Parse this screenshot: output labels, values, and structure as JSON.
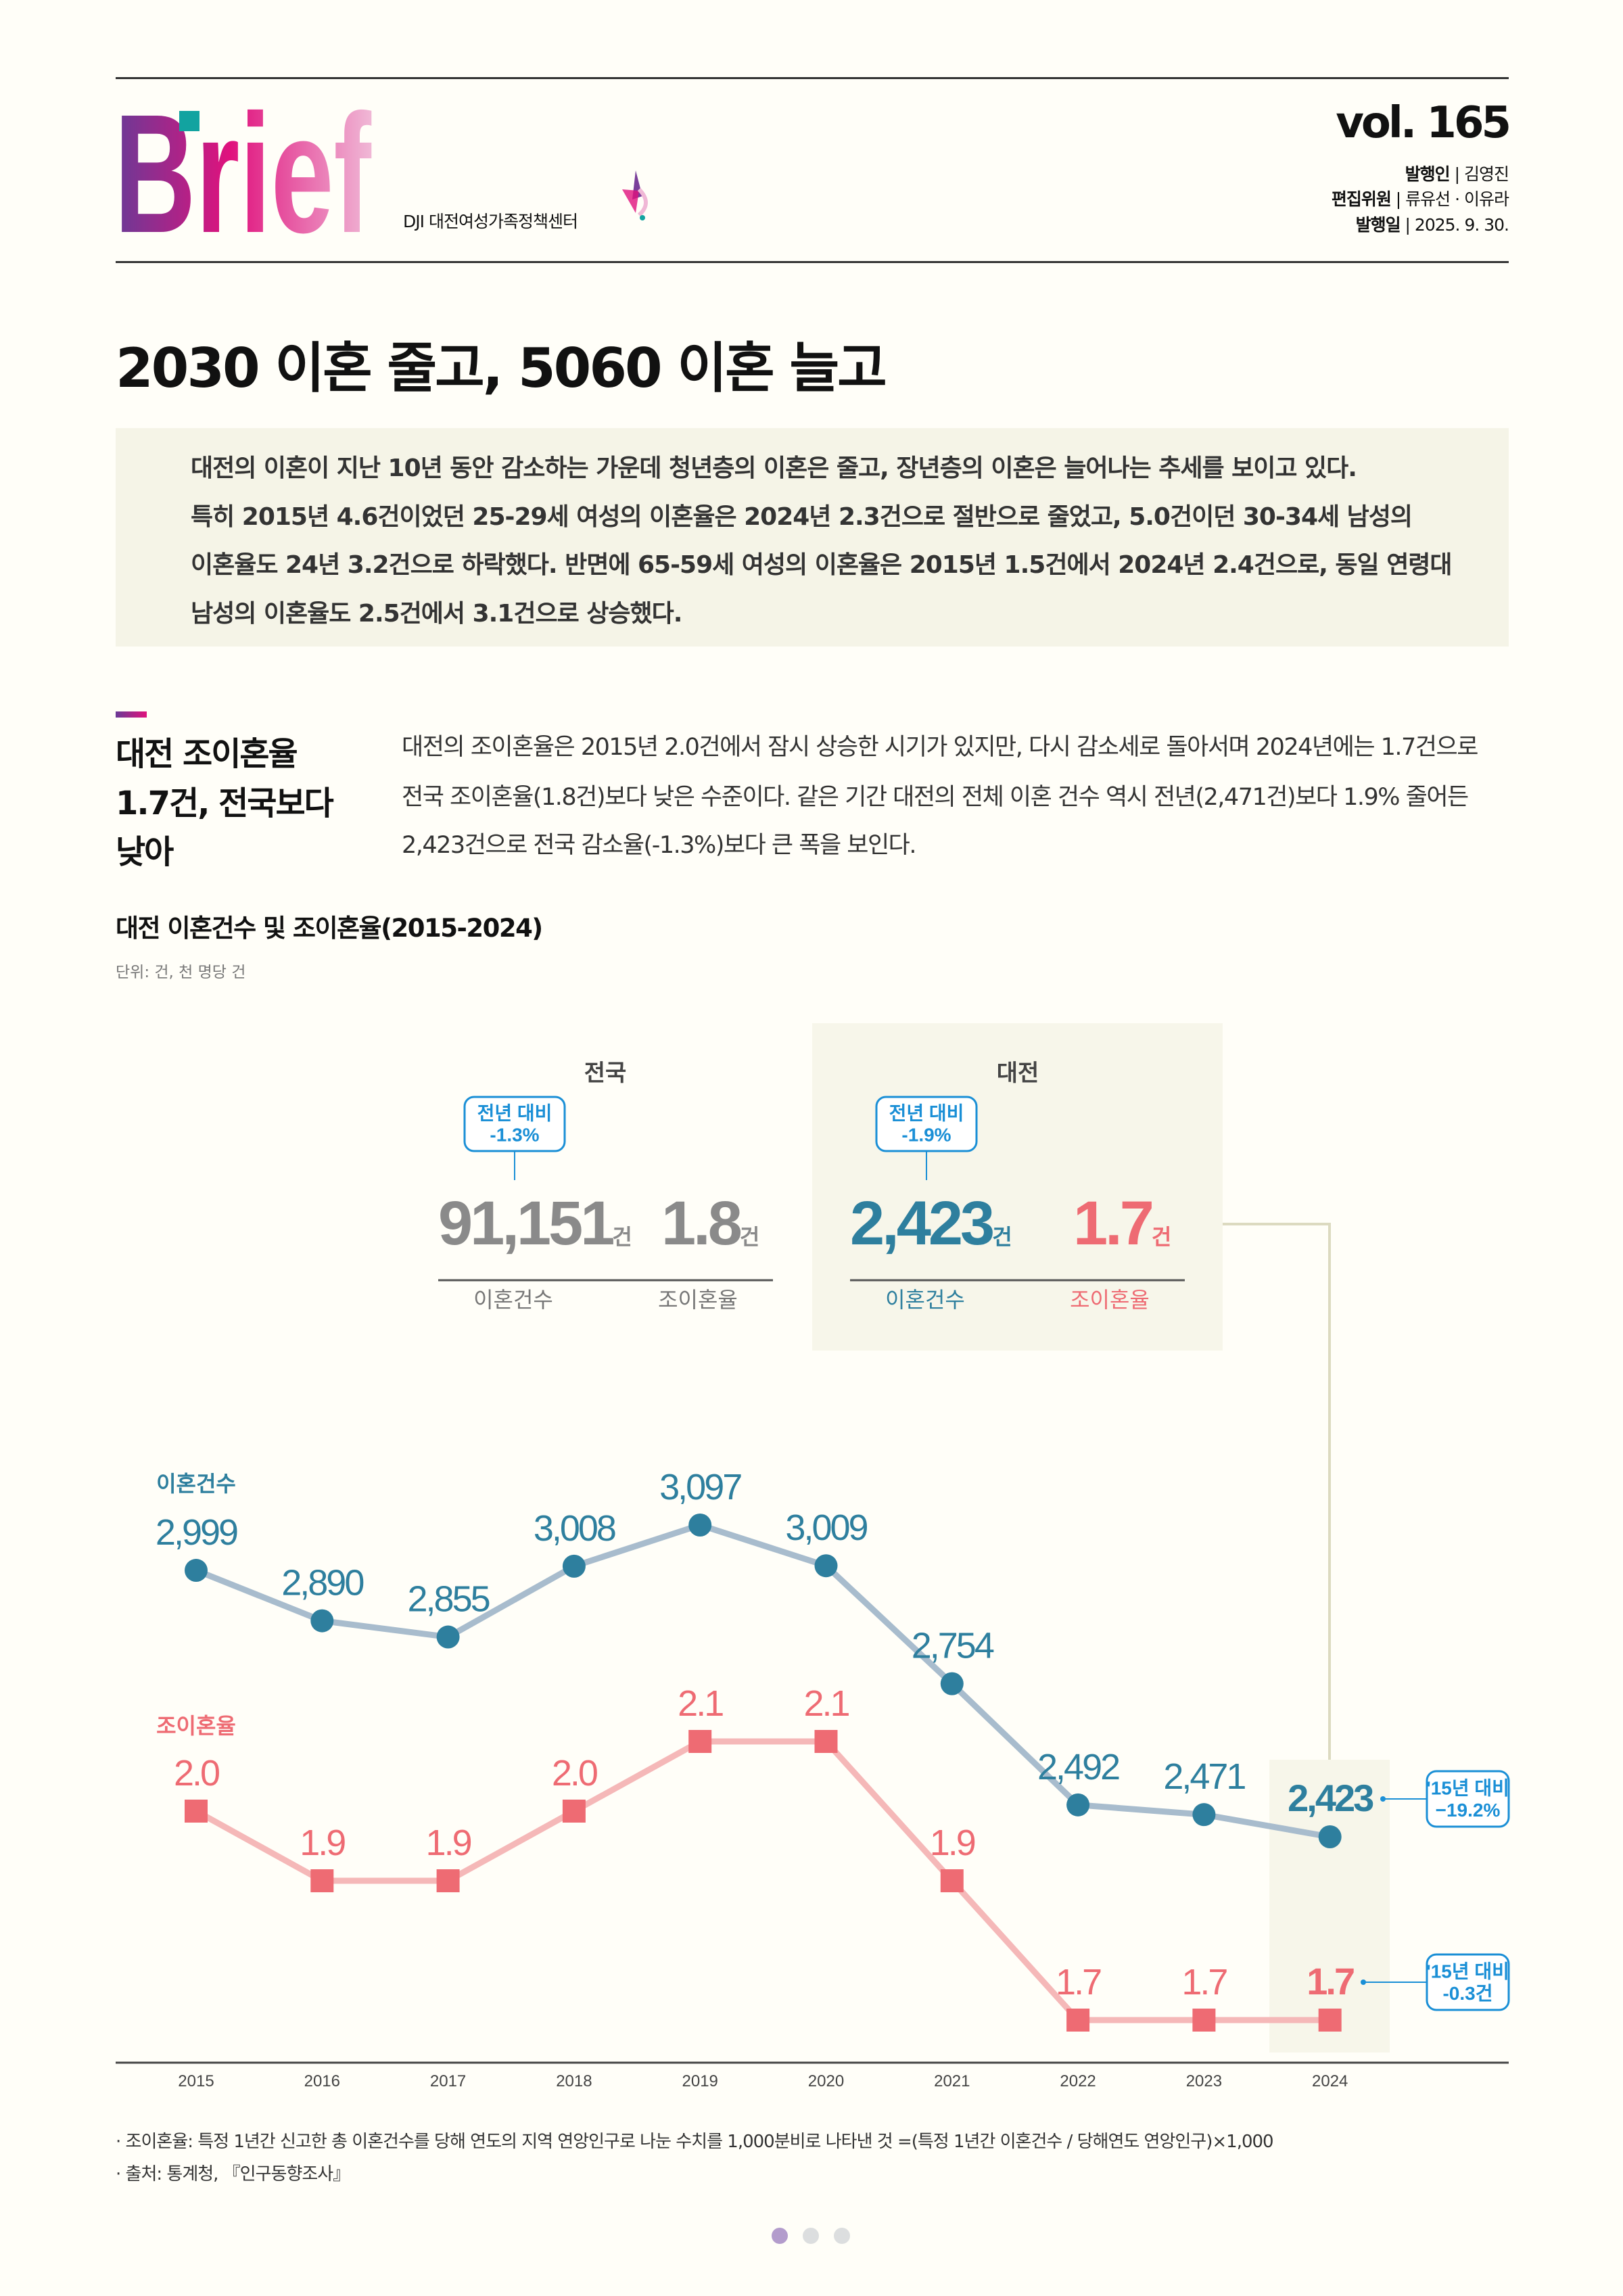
{
  "header": {
    "logo": "Brief",
    "org": "DJI 대전여성가족정책센터",
    "volume": "vol. 165",
    "meta": [
      {
        "label": "발행인",
        "value": "김영진"
      },
      {
        "label": "편집위원",
        "value": "류유선 · 이유라"
      },
      {
        "label": "발행일",
        "value": "2025. 9. 30."
      }
    ]
  },
  "title": "2030 이혼 줄고, 5060 이혼 늘고",
  "summary": [
    "대전의 이혼이 지난 10년 동안 감소하는 가운데 청년층의 이혼은 줄고, 장년층의 이혼은 늘어나는 추세를 보이고 있다.",
    "특히 2015년 4.6건이었던 25-29세 여성의 이혼율은 2024년 2.3건으로 절반으로 줄었고, 5.0건이던 30-34세 남성의",
    "이혼율도 24년 3.2건으로 하락했다. 반면에 65-59세 여성의 이혼율은 2015년 1.5건에서 2024년 2.4건으로, 동일 연령대",
    "남성의 이혼율도 2.5건에서 3.1건으로 상승했다."
  ],
  "section": {
    "heading": [
      "대전 조이혼율",
      "1.7건, 전국보다",
      "낮아"
    ],
    "body": [
      "대전의 조이혼율은 2015년 2.0건에서 잠시 상승한 시기가 있지만, 다시 감소세로 돌아서며 2024년에는 1.7건으로",
      "전국 조이혼율(1.8건)보다 낮은 수준이다. 같은 기간 대전의 전체 이혼 건수 역시 전년(2,471건)보다 1.9% 줄어든",
      "2,423건으로 전국 감소율(-1.3%)보다 큰 폭을 보인다."
    ]
  },
  "chart_title": "대전 이혼건수 및 조이혼율(2015-2024)",
  "unit": "단위: 건, 천 명당 건",
  "summary_cards": {
    "national": {
      "label": "전국",
      "badge": [
        "전년 대비",
        "-1.3%"
      ],
      "count": "91,151",
      "rate": "1.8",
      "suffix": "건",
      "count_label": "이혼건수",
      "rate_label": "조이혼율"
    },
    "daejeon": {
      "label": "대전",
      "badge": [
        "전년 대비",
        "-1.9%"
      ],
      "count": "2,423",
      "rate": "1.7",
      "suffix": "건",
      "count_label": "이혼건수",
      "rate_label": "조이혼율"
    }
  },
  "chart_data": {
    "type": "line",
    "categories": [
      "2015",
      "2016",
      "2017",
      "2018",
      "2019",
      "2020",
      "2021",
      "2022",
      "2023",
      "2024"
    ],
    "series": [
      {
        "name": "이혼건수",
        "values": [
          2999,
          2890,
          2855,
          3008,
          3097,
          3009,
          2754,
          2492,
          2471,
          2423
        ],
        "labels": [
          "2,999",
          "2,890",
          "2,855",
          "3,008",
          "3,097",
          "3,009",
          "2,754",
          "2,492",
          "2,471",
          "2,423"
        ],
        "color": "#2e7f9e",
        "line_color": "#a8bccd",
        "marker": "circle"
      },
      {
        "name": "조이혼율",
        "values": [
          2.0,
          1.9,
          1.9,
          2.0,
          2.1,
          2.1,
          1.9,
          1.7,
          1.7,
          1.7
        ],
        "labels": [
          "2.0",
          "1.9",
          "1.9",
          "2.0",
          "2.1",
          "2.1",
          "1.9",
          "1.7",
          "1.7",
          "1.7"
        ],
        "color": "#ee6b73",
        "line_color": "#f5b8b8",
        "marker": "square"
      }
    ],
    "highlight": "2024",
    "annotations": [
      [
        "'15년 대비",
        "−19.2%"
      ],
      [
        "'15년 대비",
        "-0.3건"
      ]
    ]
  },
  "footnotes": [
    "· 조이혼율: 특정 1년간 신고한 총 이혼건수를 당해 연도의 지역 연앙인구로 나눈 수치를 1,000분비로 나타낸 것 =(특정 1년간 이혼건수 / 당해연도 연앙인구)×1,000",
    "· 출처: 통계청, 『인구동향조사』"
  ],
  "colors": {
    "accent_blue": "#1a8fd6",
    "teal": "#2e7f9e",
    "pink": "#ee6b73",
    "box_bg": "#f7f6ea"
  },
  "pagination": {
    "pages": 3,
    "current": 1
  }
}
